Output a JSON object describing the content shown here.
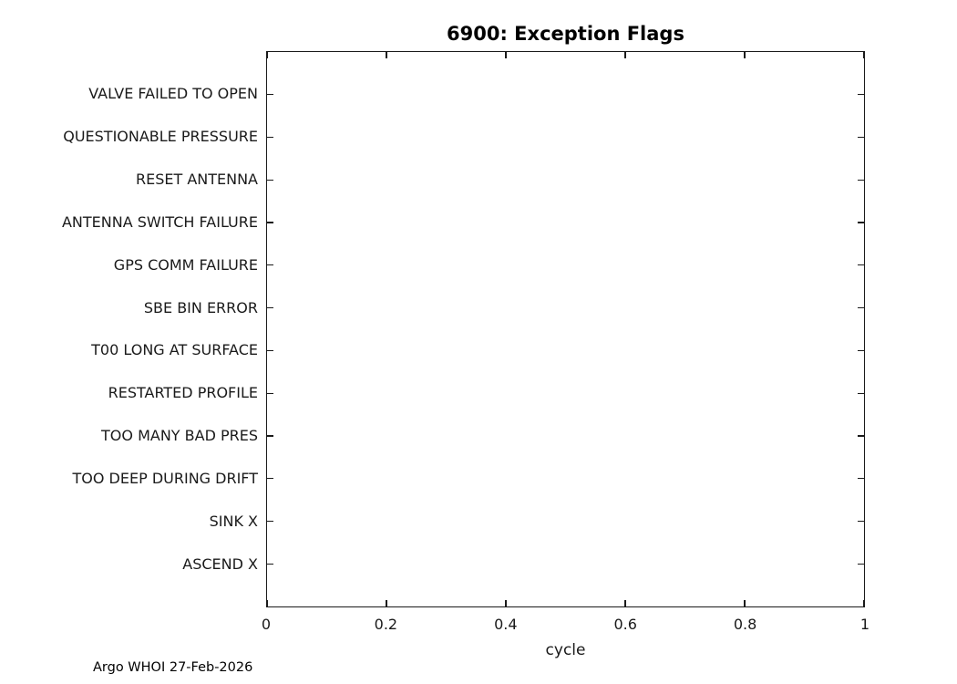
{
  "figure": {
    "background": "#ffffff",
    "axis_color": "#1a1a1a",
    "title_color": "#000000"
  },
  "chart_data": {
    "type": "scatter",
    "title": "6900: Exception Flags",
    "xlabel": "cycle",
    "ylabel": "",
    "xlim": [
      0,
      1
    ],
    "xticks": [
      0,
      0.2,
      0.4,
      0.6,
      0.8,
      1
    ],
    "xtick_labels": [
      "0",
      "0.2",
      "0.4",
      "0.6",
      "0.8",
      "1"
    ],
    "categories": [
      "VALVE FAILED TO OPEN",
      "QUESTIONABLE PRESSURE",
      "RESET ANTENNA",
      "ANTENNA SWITCH FAILURE",
      "GPS COMM FAILURE",
      "SBE BIN ERROR",
      "T00 LONG AT SURFACE",
      "RESTARTED PROFILE",
      "TOO MANY BAD PRES",
      "TOO DEEP DURING DRIFT",
      "SINK X",
      "ASCEND X"
    ],
    "series": [],
    "points": [],
    "grid": false,
    "box": true,
    "tick_direction": "in",
    "legend": null,
    "annotation": "Argo WHOI 27-Feb-2026"
  }
}
